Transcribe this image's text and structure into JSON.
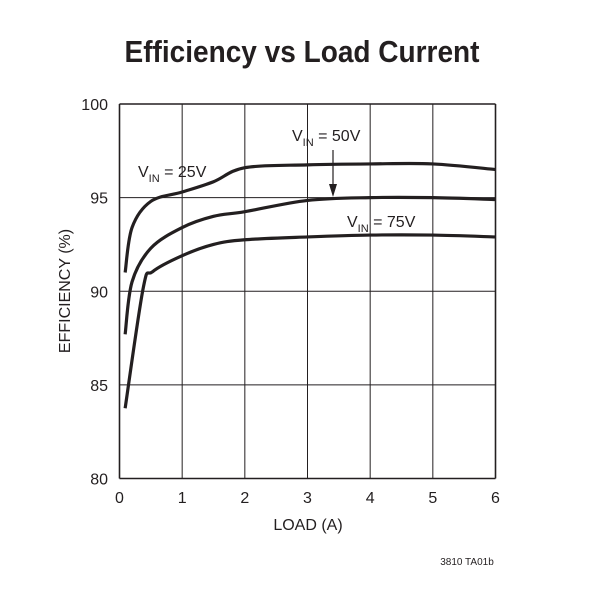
{
  "chart_data": {
    "type": "line",
    "title": "Efficiency vs Load Current",
    "xlabel": "LOAD (A)",
    "ylabel": "EFFICIENCY (%)",
    "xlim": [
      0,
      6
    ],
    "ylim": [
      80,
      100
    ],
    "xticks": [
      "0",
      "1",
      "2",
      "3",
      "4",
      "5",
      "6"
    ],
    "yticks": [
      "80",
      "85",
      "90",
      "95",
      "100"
    ],
    "grid": true,
    "series": [
      {
        "name": "VIN = 25V",
        "label_main": "V",
        "label_sub": "IN",
        "label_rest": " = 25V",
        "x": [
          0.09,
          0.2,
          0.5,
          1.0,
          1.5,
          2.0,
          3.0,
          4.0,
          5.0,
          6.0
        ],
        "y": [
          91.0,
          93.4,
          94.8,
          95.3,
          95.85,
          96.6,
          96.75,
          96.8,
          96.8,
          96.5
        ]
      },
      {
        "name": "VIN = 50V",
        "label_main": "V",
        "label_sub": "IN",
        "label_rest": " = 50V",
        "x": [
          0.09,
          0.2,
          0.5,
          1.0,
          1.5,
          2.0,
          3.0,
          4.0,
          5.0,
          6.0
        ],
        "y": [
          87.7,
          90.5,
          92.3,
          93.4,
          94.0,
          94.25,
          94.85,
          95.0,
          95.0,
          94.9
        ]
      },
      {
        "name": "VIN = 75V",
        "label_main": "V",
        "label_sub": "IN",
        "label_rest": " = 75V",
        "x": [
          0.09,
          0.38,
          0.53,
          1.0,
          1.5,
          2.0,
          3.0,
          4.0,
          5.0,
          6.0
        ],
        "y": [
          83.75,
          90.2,
          91.05,
          91.9,
          92.5,
          92.75,
          92.9,
          93.0,
          93.0,
          92.9
        ]
      }
    ],
    "figure_code": "3810 TA01b"
  }
}
